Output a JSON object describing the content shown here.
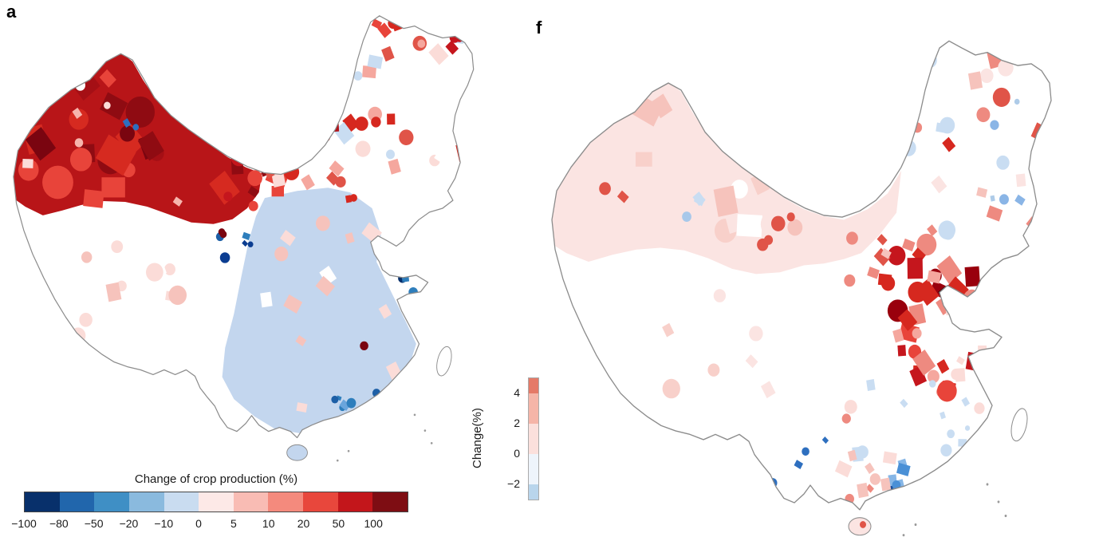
{
  "panels": {
    "a": {
      "label": "a"
    },
    "f": {
      "label": "f"
    }
  },
  "legend_a": {
    "title": "Change of crop production (%)",
    "ticks": [
      "−100",
      "−80",
      "−50",
      "−20",
      "−10",
      "0",
      "5",
      "10",
      "20",
      "50",
      "100"
    ],
    "colors": [
      "#08306b",
      "#2166ac",
      "#3f8fc5",
      "#8abade",
      "#c9dcf0",
      "#fde9e7",
      "#f9bcb4",
      "#f48a7d",
      "#e8473c",
      "#c3161b",
      "#7e0d13"
    ]
  },
  "colorbar_f": {
    "axis_label": "Change(%)",
    "ticks": [
      "4",
      "2",
      "0",
      "−2"
    ],
    "colors": [
      "#e57a68",
      "#f5b5a8",
      "#fbe0dc",
      "#eef4fb",
      "#b9d5ec"
    ]
  },
  "chart_data": [
    {
      "type": "choropleth-map",
      "panel": "a",
      "region": "China, county level",
      "variable": "Change of crop production (%)",
      "scale_ticks": [
        -100,
        -80,
        -50,
        -20,
        -10,
        0,
        5,
        10,
        20,
        50,
        100
      ],
      "palette": [
        "#08306b",
        "#2166ac",
        "#3f8fc5",
        "#8abade",
        "#c9dcf0",
        "#fde9e7",
        "#f9bcb4",
        "#f48a7d",
        "#e8473c",
        "#c3161b",
        "#7e0d13"
      ],
      "pattern_summary": {
        "northwest_xinjiang": "strong increase, mostly +50 to +100%, dark red",
        "gansu_inner_mongolia_corridor": "scattered strong increases +10 to +100%",
        "northeast_heilongjiang_jilin": "mixed pale pink/white with scattered red patches and one light-blue patch",
        "eastern_and_southern_china": "slight decrease, mostly 0 to −10%, light blue",
        "tibet_qinghai_plateau": "mostly white/no data with scattered pale pink",
        "jiangsu_shanghai_coast": "clusters of moderate-to-strong decrease, −20 to −100%",
        "pearl_river_delta": "moderate decrease cluster, blue dots"
      }
    },
    {
      "type": "choropleth-map",
      "panel": "f",
      "region": "China, county level",
      "variable": "Change (%)",
      "scale_ticks": [
        4,
        2,
        0,
        -2
      ],
      "pattern_summary": {
        "western_china_xinjiang": "slight increase, ~0 to +1%, pale pink",
        "tibet_plateau": "mostly white/no data",
        "north_china_plain_henan_shandong_hebei": "strong increase cluster, +2 to +4%, dense red with one very dark county",
        "northeast": "scattered moderate increases with a few light-blue decreases",
        "central_south": "scattered slight increases, pale pink",
        "pearl_river_delta_guangdong": "decrease cluster, ~−2%, blue"
      }
    }
  ]
}
